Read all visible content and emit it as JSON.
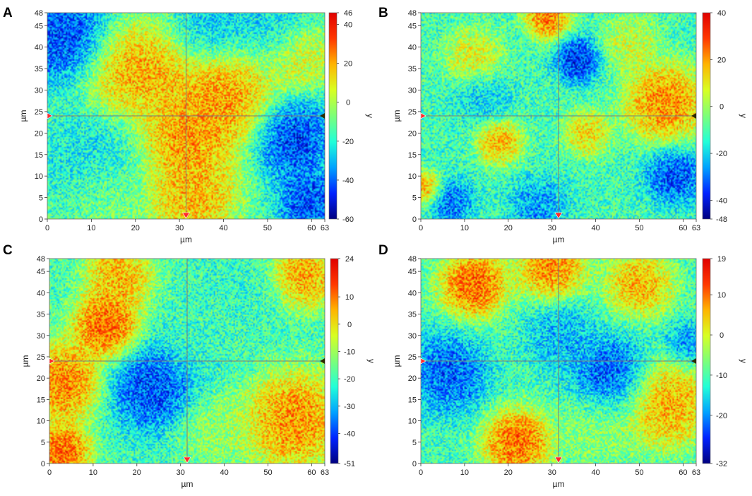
{
  "colormap": [
    "#00007f",
    "#0022ff",
    "#00a2ff",
    "#22ffd8",
    "#7cff79",
    "#d8ff22",
    "#ffb400",
    "#ff3800",
    "#e00000"
  ],
  "chart_data": [
    {
      "type": "heatmap",
      "panel_label": "A",
      "xlabel": "µm",
      "ylabel": "µm",
      "colorbar_label": "y",
      "xlim": [
        0,
        63
      ],
      "ylim": [
        0,
        48
      ],
      "x_ticks": [
        "0",
        "10",
        "20",
        "30",
        "40",
        "50",
        "60",
        "63"
      ],
      "y_ticks": [
        "0",
        "5",
        "10",
        "15",
        "20",
        "25",
        "30",
        "35",
        "40",
        "45",
        "48"
      ],
      "colorbar_range": [
        -60,
        46
      ],
      "colorbar_ticks": [
        "46",
        "40",
        "20",
        "0",
        "-20",
        "-40",
        "-60"
      ],
      "crosshair": {
        "x": 31.5,
        "y": 24
      },
      "features": [
        {
          "x": 4,
          "y": 42,
          "value": -52,
          "r": 8
        },
        {
          "x": 20,
          "y": 34,
          "value": 30,
          "r": 9
        },
        {
          "x": 40,
          "y": 28,
          "value": 32,
          "r": 10
        },
        {
          "x": 31,
          "y": 18,
          "value": 30,
          "r": 8
        },
        {
          "x": 33,
          "y": 5,
          "value": 28,
          "r": 8
        },
        {
          "x": 55,
          "y": 19,
          "value": -55,
          "r": 7
        },
        {
          "x": 60,
          "y": 4,
          "value": -50,
          "r": 6
        },
        {
          "x": 37,
          "y": 44,
          "value": -32,
          "r": 6
        },
        {
          "x": 10,
          "y": 15,
          "value": -26,
          "r": 9
        },
        {
          "x": 58,
          "y": 38,
          "value": 14,
          "r": 6
        },
        {
          "x": 14,
          "y": 5,
          "value": -4,
          "r": 7
        },
        {
          "x": 50,
          "y": 46,
          "value": -28,
          "r": 8
        }
      ]
    },
    {
      "type": "heatmap",
      "panel_label": "B",
      "xlabel": "µm",
      "ylabel": "µm",
      "colorbar_label": "y",
      "xlim": [
        0,
        63
      ],
      "ylim": [
        0,
        48
      ],
      "x_ticks": [
        "0",
        "10",
        "20",
        "30",
        "40",
        "50",
        "60",
        "63"
      ],
      "y_ticks": [
        "0",
        "5",
        "10",
        "15",
        "20",
        "25",
        "30",
        "35",
        "40",
        "45",
        "48"
      ],
      "colorbar_range": [
        -48,
        40
      ],
      "colorbar_ticks": [
        "40",
        "20",
        "0",
        "-20",
        "-40",
        "-48"
      ],
      "crosshair": {
        "x": 31.5,
        "y": 24
      },
      "features": [
        {
          "x": 29,
          "y": 47,
          "value": 34,
          "r": 4
        },
        {
          "x": 36,
          "y": 37,
          "value": -44,
          "r": 4
        },
        {
          "x": 56,
          "y": 27,
          "value": 32,
          "r": 7
        },
        {
          "x": 18,
          "y": 18,
          "value": 26,
          "r": 4
        },
        {
          "x": 38,
          "y": 20,
          "value": 20,
          "r": 4
        },
        {
          "x": 58,
          "y": 10,
          "value": -40,
          "r": 5
        },
        {
          "x": 7,
          "y": 4,
          "value": -36,
          "r": 4
        },
        {
          "x": 27,
          "y": 3,
          "value": -30,
          "r": 5
        },
        {
          "x": 1,
          "y": 7,
          "value": 26,
          "r": 3
        },
        {
          "x": 12,
          "y": 38,
          "value": 14,
          "r": 5
        },
        {
          "x": 48,
          "y": 41,
          "value": 10,
          "r": 5
        },
        {
          "x": 14,
          "y": 28,
          "value": -22,
          "r": 5
        }
      ]
    },
    {
      "type": "heatmap",
      "panel_label": "C",
      "xlabel": "µm",
      "ylabel": "µm",
      "colorbar_label": "y",
      "xlim": [
        0,
        63
      ],
      "ylim": [
        0,
        48
      ],
      "x_ticks": [
        "0",
        "10",
        "20",
        "30",
        "40",
        "50",
        "60",
        "63"
      ],
      "y_ticks": [
        "0",
        "5",
        "10",
        "15",
        "20",
        "25",
        "30",
        "35",
        "40",
        "45",
        "48"
      ],
      "colorbar_range": [
        -51,
        24
      ],
      "colorbar_ticks": [
        "24",
        "10",
        "0",
        "-10",
        "-20",
        "-30",
        "-40",
        "-51"
      ],
      "crosshair": {
        "x": 31.5,
        "y": 24
      },
      "features": [
        {
          "x": 13,
          "y": 32,
          "value": 22,
          "r": 6
        },
        {
          "x": 3,
          "y": 19,
          "value": 18,
          "r": 7
        },
        {
          "x": 3,
          "y": 3,
          "value": 22,
          "r": 5
        },
        {
          "x": 24,
          "y": 18,
          "value": -45,
          "r": 8
        },
        {
          "x": 36,
          "y": 30,
          "value": -20,
          "r": 9
        },
        {
          "x": 56,
          "y": 10,
          "value": 16,
          "r": 9
        },
        {
          "x": 58,
          "y": 44,
          "value": 14,
          "r": 6
        },
        {
          "x": 16,
          "y": 44,
          "value": 12,
          "r": 6
        },
        {
          "x": 45,
          "y": 40,
          "value": -22,
          "r": 7
        },
        {
          "x": 38,
          "y": 8,
          "value": -8,
          "r": 7
        }
      ]
    },
    {
      "type": "heatmap",
      "panel_label": "D",
      "xlabel": "µm",
      "ylabel": "µm",
      "colorbar_label": "y",
      "xlim": [
        0,
        63
      ],
      "ylim": [
        0,
        48
      ],
      "x_ticks": [
        "0",
        "10",
        "20",
        "30",
        "40",
        "50",
        "60",
        "63"
      ],
      "y_ticks": [
        "0",
        "5",
        "10",
        "15",
        "20",
        "25",
        "30",
        "35",
        "40",
        "45",
        "48"
      ],
      "colorbar_range": [
        -32,
        19
      ],
      "colorbar_ticks": [
        "19",
        "10",
        "0",
        "-10",
        "-20",
        "-32"
      ],
      "crosshair": {
        "x": 31.5,
        "y": 24
      },
      "features": [
        {
          "x": 12,
          "y": 42,
          "value": 17,
          "r": 6
        },
        {
          "x": 30,
          "y": 46,
          "value": 14,
          "r": 6
        },
        {
          "x": 22,
          "y": 5,
          "value": 17,
          "r": 6
        },
        {
          "x": 56,
          "y": 14,
          "value": 12,
          "r": 8
        },
        {
          "x": 50,
          "y": 42,
          "value": 10,
          "r": 6
        },
        {
          "x": 6,
          "y": 21,
          "value": -26,
          "r": 7
        },
        {
          "x": 44,
          "y": 20,
          "value": -28,
          "r": 7
        },
        {
          "x": 32,
          "y": 30,
          "value": -20,
          "r": 6
        },
        {
          "x": 40,
          "y": 8,
          "value": -4,
          "r": 7
        },
        {
          "x": 61,
          "y": 28,
          "value": -22,
          "r": 4
        }
      ]
    }
  ]
}
